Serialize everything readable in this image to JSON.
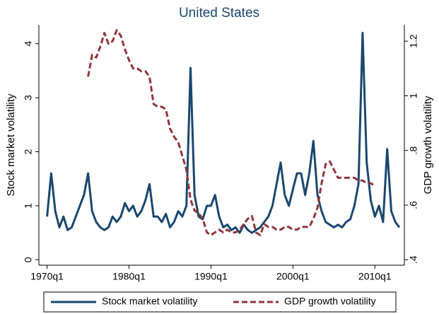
{
  "chart_data": {
    "type": "line",
    "title": "United States",
    "y_label": "Stock market volatility",
    "y2_label": "GDP growth volatility",
    "x": [
      1970,
      1970.5,
      1971,
      1971.5,
      1972,
      1972.5,
      1973,
      1973.5,
      1974,
      1974.5,
      1975,
      1975.5,
      1976,
      1976.5,
      1977,
      1977.5,
      1978,
      1978.5,
      1979,
      1979.5,
      1980,
      1980.5,
      1981,
      1981.5,
      1982,
      1982.5,
      1983,
      1983.5,
      1984,
      1984.5,
      1985,
      1985.5,
      1986,
      1986.5,
      1987,
      1987.5,
      1988,
      1988.5,
      1989,
      1989.5,
      1990,
      1990.5,
      1991,
      1991.5,
      1992,
      1992.5,
      1993,
      1993.5,
      1994,
      1994.5,
      1995,
      1995.5,
      1996,
      1996.5,
      1997,
      1997.5,
      1998,
      1998.5,
      1999,
      1999.5,
      2000,
      2000.5,
      2001,
      2001.5,
      2002,
      2002.5,
      2003,
      2003.5,
      2004,
      2004.5,
      2005,
      2005.5,
      2006,
      2006.5,
      2007,
      2007.5,
      2008,
      2008.5,
      2009,
      2009.5,
      2010,
      2010.5,
      2011,
      2011.5,
      2012,
      2012.5,
      2013
    ],
    "series": [
      {
        "name": "Stock market volatility",
        "color": "#1a476f",
        "axis": "y",
        "dash": false,
        "values": [
          0.8,
          1.6,
          0.9,
          0.6,
          0.8,
          0.55,
          0.6,
          0.8,
          1.0,
          1.2,
          1.6,
          0.9,
          0.7,
          0.6,
          0.55,
          0.6,
          0.8,
          0.7,
          0.8,
          1.05,
          0.9,
          1.0,
          0.8,
          0.9,
          1.1,
          1.4,
          0.8,
          0.8,
          0.7,
          0.85,
          0.6,
          0.7,
          0.9,
          0.8,
          1.0,
          3.55,
          1.2,
          0.8,
          0.75,
          1.0,
          1.0,
          1.2,
          0.8,
          0.6,
          0.65,
          0.55,
          0.6,
          0.5,
          0.65,
          0.55,
          0.5,
          0.55,
          0.6,
          0.7,
          0.8,
          1.0,
          1.4,
          1.8,
          1.2,
          1.0,
          1.3,
          1.6,
          1.6,
          1.2,
          1.6,
          2.2,
          1.2,
          0.9,
          0.7,
          0.65,
          0.6,
          0.65,
          0.6,
          0.7,
          0.75,
          1.0,
          1.4,
          4.2,
          1.8,
          1.1,
          0.8,
          1.0,
          0.7,
          2.05,
          0.9,
          0.7,
          0.6
        ]
      },
      {
        "name": "GDP growth volatility",
        "color": "#90353b",
        "axis": "y2",
        "dash": true,
        "values": [
          null,
          null,
          null,
          null,
          null,
          null,
          null,
          null,
          null,
          null,
          1.07,
          1.15,
          1.14,
          1.18,
          1.23,
          1.19,
          1.2,
          1.24,
          1.22,
          1.17,
          1.13,
          1.1,
          1.1,
          1.09,
          1.09,
          1.07,
          0.97,
          0.96,
          0.96,
          0.95,
          0.88,
          0.85,
          0.83,
          0.78,
          0.73,
          0.62,
          0.58,
          0.57,
          0.55,
          0.5,
          0.49,
          0.5,
          0.51,
          0.5,
          0.51,
          0.5,
          0.5,
          0.51,
          0.53,
          0.55,
          0.56,
          0.5,
          0.49,
          0.53,
          0.52,
          0.52,
          0.51,
          0.51,
          0.52,
          0.52,
          0.51,
          0.51,
          0.52,
          0.52,
          0.52,
          0.55,
          0.59,
          0.68,
          0.75,
          0.76,
          0.73,
          0.7,
          0.7,
          0.7,
          0.7,
          0.7,
          0.69,
          0.69,
          0.68,
          0.68,
          0.67,
          null,
          null,
          null,
          null,
          null,
          null
        ]
      }
    ],
    "xlim": [
      1969,
      2013.6
    ],
    "xticks": [
      {
        "value": 1970,
        "label": "1970q1"
      },
      {
        "value": 1980,
        "label": "1980q1"
      },
      {
        "value": 1990,
        "label": "1990q1"
      },
      {
        "value": 2000,
        "label": "2000q1"
      },
      {
        "value": 2010,
        "label": "2010q1"
      }
    ],
    "ylim": [
      -0.1,
      4.35
    ],
    "yticks": [
      0,
      1,
      2,
      3,
      4
    ],
    "y2lim": [
      0.38,
      1.26
    ],
    "y2ticks": [
      {
        "value": 0.4,
        "label": ".4"
      },
      {
        "value": 0.6,
        "label": ".6"
      },
      {
        "value": 0.8,
        "label": ".8"
      },
      1,
      {
        "value": 1.2,
        "label": "1.2"
      }
    ],
    "grid": false
  }
}
